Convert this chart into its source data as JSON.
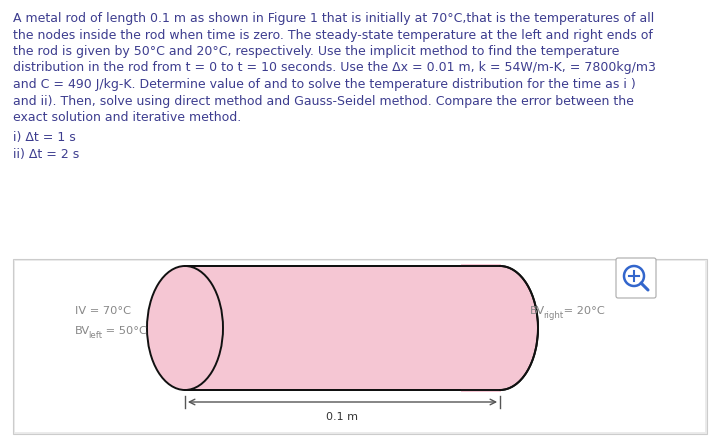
{
  "paragraph_lines": [
    "A metal rod of length 0.1 m as shown in Figure 1 that is initially at 70°C,that is the temperatures of all",
    "the nodes inside the rod when time is zero. The steady-state temperature at the left and right ends of",
    "the rod is given by 50°C and 20°C, respectively. Use the implicit method to find the temperature",
    "distribution in the rod from t = 0 to t = 10 seconds. Use the Δx = 0.01 m, k = 54W/m-K, = 7800kg/m3",
    "and C = 490 J/kg-K. Determine value of and to solve the temperature distribution for the time as i )",
    "and ii). Then, solve using direct method and Gauss-Seidel method. Compare the error between the",
    "exact solution and iterative method."
  ],
  "line1": "i) Δt = 1 s",
  "line2": "ii) Δt = 2 s",
  "iv_label": "IV = 70°C",
  "bvleft_main": "BV",
  "bvleft_sub": "left",
  "bvleft_val": " = 50°C",
  "bvright_main": "BV",
  "bvright_sub": "right",
  "bvright_val": " = 20°C",
  "length_label": "0.1 m",
  "bg_color": "#ffffff",
  "panel_bg": "#ebebeb",
  "panel_inner_bg": "#ffffff",
  "cylinder_fill": "#f5c6d3",
  "cylinder_stroke": "#111111",
  "text_color": "#3d3d8f",
  "label_color": "#888888",
  "text_fontsize": 9.0,
  "label_fontsize": 8.2,
  "dim_fontsize": 8.0,
  "lw": 1.4
}
